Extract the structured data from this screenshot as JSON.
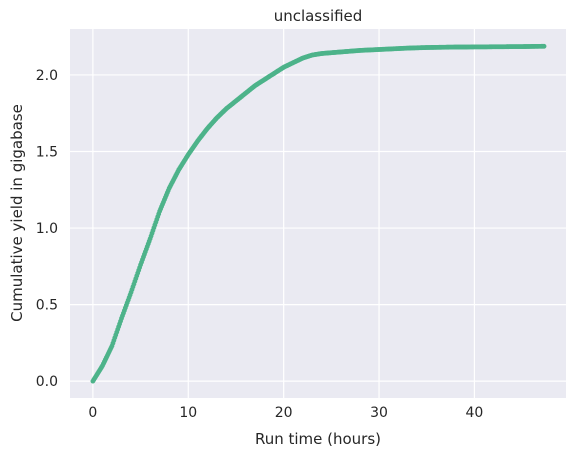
{
  "chart_data": {
    "type": "scatter",
    "title": "unclassified",
    "xlabel": "Run time (hours)",
    "ylabel": "Cumulative yield in gigabase",
    "xlim": [
      -2.4,
      49.6
    ],
    "ylim": [
      -0.11,
      2.3
    ],
    "xticks": [
      0,
      10,
      20,
      30,
      40
    ],
    "xtick_labels": [
      "0",
      "10",
      "20",
      "30",
      "40"
    ],
    "yticks": [
      0.0,
      0.5,
      1.0,
      1.5,
      2.0
    ],
    "ytick_labels": [
      "0.0",
      "0.5",
      "1.0",
      "1.5",
      "2.0"
    ],
    "grid": true,
    "background_color": "#eaeaf2",
    "grid_color": "#ffffff",
    "series_color": "#4db38a",
    "series": [
      {
        "x": [
          0,
          1,
          2,
          3,
          4,
          5,
          6,
          7,
          8,
          9,
          10,
          11,
          12,
          13,
          14,
          15,
          16,
          17,
          18,
          19,
          20,
          21,
          22,
          23,
          24,
          25,
          26,
          27,
          28,
          29,
          30,
          31,
          32,
          33,
          34,
          35,
          36,
          37,
          38,
          39,
          40,
          41,
          42,
          43,
          44,
          45,
          46,
          47.3
        ],
        "y": [
          0.0,
          0.1,
          0.23,
          0.41,
          0.58,
          0.76,
          0.93,
          1.11,
          1.26,
          1.38,
          1.48,
          1.57,
          1.65,
          1.72,
          1.78,
          1.83,
          1.88,
          1.93,
          1.97,
          2.01,
          2.05,
          2.08,
          2.11,
          2.13,
          2.14,
          2.145,
          2.15,
          2.155,
          2.16,
          2.163,
          2.166,
          2.169,
          2.172,
          2.175,
          2.177,
          2.179,
          2.18,
          2.181,
          2.182,
          2.182,
          2.183,
          2.183,
          2.184,
          2.184,
          2.185,
          2.185,
          2.186,
          2.187
        ]
      }
    ]
  }
}
